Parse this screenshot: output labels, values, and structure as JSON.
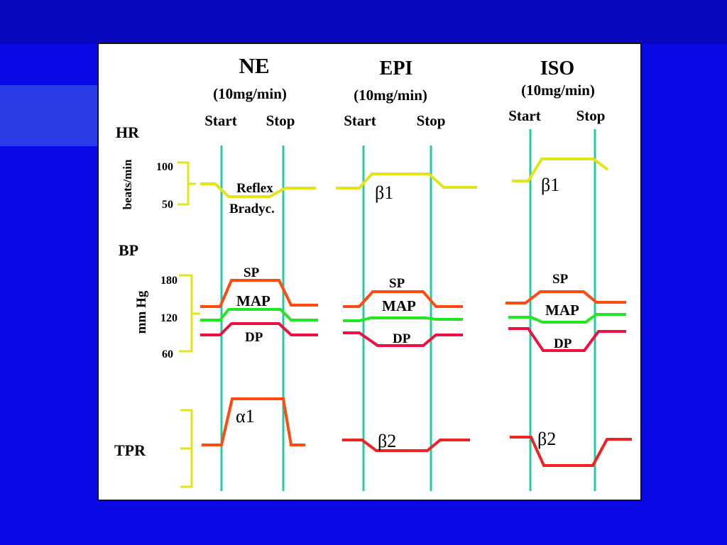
{
  "colors": {
    "background": "#0a0ae6",
    "accent_bar": "#2a3ee8",
    "marker_line": "#27c9a4",
    "hr_trace": "#e4e41a",
    "sp_trace": "#ff4a10",
    "map_trace": "#22e822",
    "dp_trace": "#ee1040",
    "tpr_trace": "#ee2222",
    "scale_bracket": "#e4e41a"
  },
  "columns": [
    {
      "drug": "NE",
      "dose": "(10mg/min)",
      "start": "Start",
      "stop": "Stop"
    },
    {
      "drug": "EPI",
      "dose": "(10mg/min)",
      "start": "Start",
      "stop": "Stop"
    },
    {
      "drug": "ISO",
      "dose": "(10mg/min)",
      "start": "Start",
      "stop": "Stop"
    }
  ],
  "rows": {
    "hr": {
      "label": "HR",
      "units": "beats/min",
      "ticks": [
        "100",
        "50"
      ]
    },
    "bp": {
      "label": "BP",
      "units": "mm Hg",
      "ticks": [
        "180",
        "120",
        "60"
      ]
    },
    "tpr": {
      "label": "TPR"
    }
  },
  "annotations": {
    "reflex_1": "Reflex",
    "reflex_2": "Bradyc.",
    "epi_hr": "β1",
    "iso_hr": "β1",
    "ne_tpr": "α1",
    "epi_tpr": "β2",
    "iso_tpr": "β2"
  },
  "trace_labels": {
    "sp": "SP",
    "map": "MAP",
    "dp": "DP"
  }
}
